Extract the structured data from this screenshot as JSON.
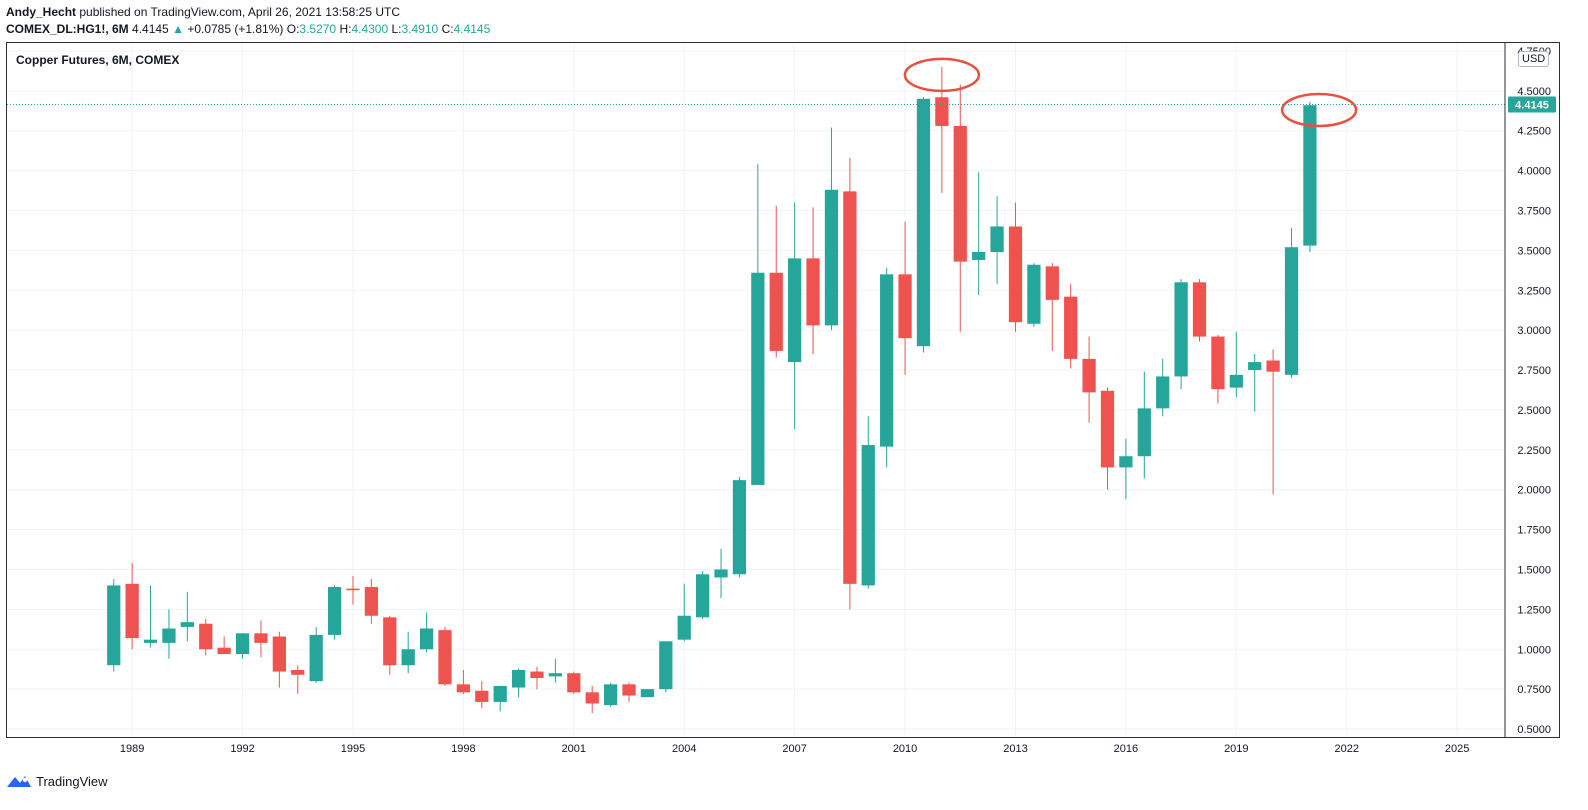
{
  "header": {
    "author": "Andy_Hecht",
    "published": " published on TradingView.com, April 26, 2021 13:58:25 UTC",
    "symbol": "COMEX_DL:HG1!, 6M",
    "last": "4.4145",
    "change": "+0.0785 (+1.81%)",
    "o_label": "O:",
    "o_value": "3.5270",
    "h_label": "H:",
    "h_value": "4.4300",
    "l_label": "L:",
    "l_value": "3.4910",
    "c_label": "C:",
    "c_value": "4.4145"
  },
  "chart_title": "Copper Futures, 6M, COMEX",
  "currency": "USD",
  "footer": {
    "brand": "TradingView"
  },
  "colors": {
    "up": "#26a69a",
    "down": "#ef5350",
    "grid": "#f0f3fa",
    "annotation": "#e9503f"
  },
  "chart_data": {
    "type": "candlestick",
    "title": "Copper Futures, 6M, COMEX",
    "ylim": [
      0.45,
      4.8
    ],
    "xlim": [
      1985.6,
      2026.3
    ],
    "ytick_labels": [
      "0.5000",
      "0.7500",
      "1.0000",
      "1.2500",
      "1.5000",
      "1.7500",
      "2.0000",
      "2.2500",
      "2.5000",
      "2.7500",
      "3.0000",
      "3.2500",
      "3.5000",
      "3.7500",
      "4.0000",
      "4.2500",
      "4.5000",
      "4.7500"
    ],
    "xtick_labels": [
      "1989",
      "1992",
      "1995",
      "1998",
      "2001",
      "2004",
      "2007",
      "2010",
      "2013",
      "2016",
      "2019",
      "2022",
      "2025"
    ],
    "last_price": 4.4145,
    "last_price_label": "4.4145",
    "grid": true,
    "annotations": [
      {
        "type": "ellipse",
        "t": 2011.0,
        "price": 4.6
      },
      {
        "type": "ellipse",
        "t": 2021.25,
        "price": 4.38
      }
    ],
    "candles": [
      {
        "t": 1988.5,
        "o": 0.9,
        "h": 1.44,
        "l": 0.86,
        "c": 1.4
      },
      {
        "t": 1989.0,
        "o": 1.41,
        "h": 1.54,
        "l": 1.0,
        "c": 1.07
      },
      {
        "t": 1989.5,
        "o": 1.04,
        "h": 1.4,
        "l": 1.01,
        "c": 1.06
      },
      {
        "t": 1990.0,
        "o": 1.04,
        "h": 1.25,
        "l": 0.94,
        "c": 1.13
      },
      {
        "t": 1990.5,
        "o": 1.14,
        "h": 1.36,
        "l": 1.05,
        "c": 1.17
      },
      {
        "t": 1991.0,
        "o": 1.16,
        "h": 1.19,
        "l": 0.96,
        "c": 1.0
      },
      {
        "t": 1991.5,
        "o": 1.01,
        "h": 1.08,
        "l": 0.97,
        "c": 0.97
      },
      {
        "t": 1992.0,
        "o": 0.97,
        "h": 1.1,
        "l": 0.94,
        "c": 1.1
      },
      {
        "t": 1992.5,
        "o": 1.1,
        "h": 1.18,
        "l": 0.95,
        "c": 1.04
      },
      {
        "t": 1993.0,
        "o": 1.08,
        "h": 1.11,
        "l": 0.76,
        "c": 0.86
      },
      {
        "t": 1993.5,
        "o": 0.87,
        "h": 0.9,
        "l": 0.72,
        "c": 0.84
      },
      {
        "t": 1994.0,
        "o": 0.8,
        "h": 1.14,
        "l": 0.79,
        "c": 1.09
      },
      {
        "t": 1994.5,
        "o": 1.09,
        "h": 1.4,
        "l": 1.06,
        "c": 1.39
      },
      {
        "t": 1995.0,
        "o": 1.38,
        "h": 1.46,
        "l": 1.28,
        "c": 1.37
      },
      {
        "t": 1995.5,
        "o": 1.39,
        "h": 1.44,
        "l": 1.16,
        "c": 1.21
      },
      {
        "t": 1996.0,
        "o": 1.2,
        "h": 1.21,
        "l": 0.84,
        "c": 0.9
      },
      {
        "t": 1996.5,
        "o": 0.9,
        "h": 1.11,
        "l": 0.85,
        "c": 1.0
      },
      {
        "t": 1997.0,
        "o": 1.0,
        "h": 1.23,
        "l": 0.98,
        "c": 1.13
      },
      {
        "t": 1997.5,
        "o": 1.12,
        "h": 1.14,
        "l": 0.77,
        "c": 0.78
      },
      {
        "t": 1998.0,
        "o": 0.78,
        "h": 0.87,
        "l": 0.72,
        "c": 0.73
      },
      {
        "t": 1998.5,
        "o": 0.74,
        "h": 0.8,
        "l": 0.63,
        "c": 0.67
      },
      {
        "t": 1999.0,
        "o": 0.67,
        "h": 0.77,
        "l": 0.61,
        "c": 0.77
      },
      {
        "t": 1999.5,
        "o": 0.76,
        "h": 0.88,
        "l": 0.7,
        "c": 0.87
      },
      {
        "t": 2000.0,
        "o": 0.86,
        "h": 0.89,
        "l": 0.75,
        "c": 0.82
      },
      {
        "t": 2000.5,
        "o": 0.83,
        "h": 0.94,
        "l": 0.79,
        "c": 0.85
      },
      {
        "t": 2001.0,
        "o": 0.85,
        "h": 0.86,
        "l": 0.72,
        "c": 0.73
      },
      {
        "t": 2001.5,
        "o": 0.73,
        "h": 0.77,
        "l": 0.6,
        "c": 0.66
      },
      {
        "t": 2002.0,
        "o": 0.65,
        "h": 0.79,
        "l": 0.64,
        "c": 0.78
      },
      {
        "t": 2002.5,
        "o": 0.78,
        "h": 0.79,
        "l": 0.67,
        "c": 0.71
      },
      {
        "t": 2003.0,
        "o": 0.7,
        "h": 0.75,
        "l": 0.7,
        "c": 0.75
      },
      {
        "t": 2003.5,
        "o": 0.75,
        "h": 1.05,
        "l": 0.73,
        "c": 1.05
      },
      {
        "t": 2004.0,
        "o": 1.06,
        "h": 1.41,
        "l": 1.05,
        "c": 1.21
      },
      {
        "t": 2004.5,
        "o": 1.2,
        "h": 1.49,
        "l": 1.19,
        "c": 1.47
      },
      {
        "t": 2005.0,
        "o": 1.45,
        "h": 1.63,
        "l": 1.32,
        "c": 1.5
      },
      {
        "t": 2005.5,
        "o": 1.47,
        "h": 2.08,
        "l": 1.45,
        "c": 2.06
      },
      {
        "t": 2006.0,
        "o": 2.03,
        "h": 4.04,
        "l": 2.03,
        "c": 3.36
      },
      {
        "t": 2006.5,
        "o": 3.36,
        "h": 3.78,
        "l": 2.83,
        "c": 2.87
      },
      {
        "t": 2007.0,
        "o": 2.8,
        "h": 3.8,
        "l": 2.38,
        "c": 3.45
      },
      {
        "t": 2007.5,
        "o": 3.45,
        "h": 3.77,
        "l": 2.85,
        "c": 3.03
      },
      {
        "t": 2008.0,
        "o": 3.03,
        "h": 4.27,
        "l": 3.0,
        "c": 3.88
      },
      {
        "t": 2008.5,
        "o": 3.87,
        "h": 4.08,
        "l": 1.25,
        "c": 1.41
      },
      {
        "t": 2009.0,
        "o": 1.4,
        "h": 2.46,
        "l": 1.38,
        "c": 2.28
      },
      {
        "t": 2009.5,
        "o": 2.27,
        "h": 3.39,
        "l": 2.14,
        "c": 3.35
      },
      {
        "t": 2010.0,
        "o": 3.35,
        "h": 3.68,
        "l": 2.72,
        "c": 2.95
      },
      {
        "t": 2010.5,
        "o": 2.9,
        "h": 4.46,
        "l": 2.86,
        "c": 4.45
      },
      {
        "t": 2011.0,
        "o": 4.46,
        "h": 4.65,
        "l": 3.86,
        "c": 4.28
      },
      {
        "t": 2011.5,
        "o": 4.28,
        "h": 4.54,
        "l": 2.99,
        "c": 3.43
      },
      {
        "t": 2012.0,
        "o": 3.44,
        "h": 3.99,
        "l": 3.22,
        "c": 3.49
      },
      {
        "t": 2012.5,
        "o": 3.49,
        "h": 3.84,
        "l": 3.29,
        "c": 3.65
      },
      {
        "t": 2013.0,
        "o": 3.65,
        "h": 3.8,
        "l": 2.99,
        "c": 3.05
      },
      {
        "t": 2013.5,
        "o": 3.04,
        "h": 3.42,
        "l": 3.02,
        "c": 3.41
      },
      {
        "t": 2014.0,
        "o": 3.4,
        "h": 3.42,
        "l": 2.87,
        "c": 3.19
      },
      {
        "t": 2014.5,
        "o": 3.21,
        "h": 3.29,
        "l": 2.76,
        "c": 2.82
      },
      {
        "t": 2015.0,
        "o": 2.82,
        "h": 2.96,
        "l": 2.42,
        "c": 2.61
      },
      {
        "t": 2015.5,
        "o": 2.62,
        "h": 2.64,
        "l": 2.0,
        "c": 2.14
      },
      {
        "t": 2016.0,
        "o": 2.14,
        "h": 2.32,
        "l": 1.94,
        "c": 2.21
      },
      {
        "t": 2016.5,
        "o": 2.21,
        "h": 2.74,
        "l": 2.07,
        "c": 2.51
      },
      {
        "t": 2017.0,
        "o": 2.51,
        "h": 2.82,
        "l": 2.46,
        "c": 2.71
      },
      {
        "t": 2017.5,
        "o": 2.71,
        "h": 3.32,
        "l": 2.63,
        "c": 3.3
      },
      {
        "t": 2018.0,
        "o": 3.3,
        "h": 3.32,
        "l": 2.93,
        "c": 2.96
      },
      {
        "t": 2018.5,
        "o": 2.96,
        "h": 2.97,
        "l": 2.54,
        "c": 2.63
      },
      {
        "t": 2019.0,
        "o": 2.64,
        "h": 2.99,
        "l": 2.58,
        "c": 2.72
      },
      {
        "t": 2019.5,
        "o": 2.75,
        "h": 2.85,
        "l": 2.49,
        "c": 2.8
      },
      {
        "t": 2020.0,
        "o": 2.81,
        "h": 2.88,
        "l": 1.97,
        "c": 2.74
      },
      {
        "t": 2020.5,
        "o": 2.72,
        "h": 3.64,
        "l": 2.7,
        "c": 3.52
      },
      {
        "t": 2021.0,
        "o": 3.53,
        "h": 4.43,
        "l": 3.49,
        "c": 4.41
      }
    ]
  }
}
